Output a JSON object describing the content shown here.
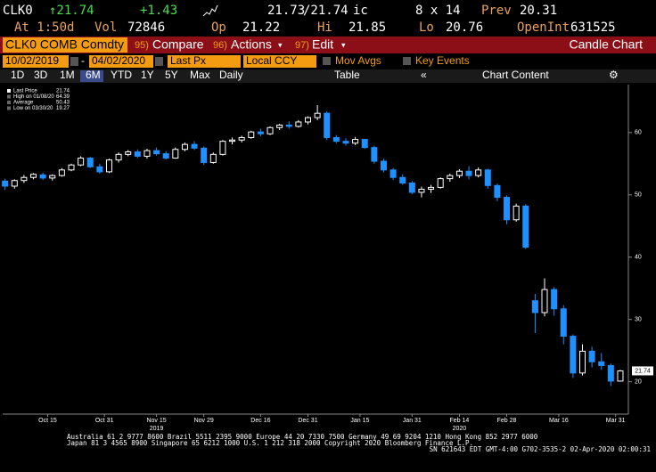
{
  "header": {
    "ticker": "CLK0",
    "last": "↑21.74",
    "change": "+1.43",
    "bid": "21.73",
    "ask": "/21.74",
    "bid_ask_code": "ic",
    "size": "8 x 14",
    "prev_label": "Prev",
    "prev": "20.31",
    "time": "At 1:50d",
    "vol_label": "Vol",
    "vol": "72846",
    "open_label": "Op",
    "open": "21.22",
    "high_label": "Hi",
    "high": "21.85",
    "low_label": "Lo",
    "low": "20.76",
    "oi_label": "OpenInt",
    "oi": "631525"
  },
  "toolbar": {
    "security": "CLK0 COMB Comdty",
    "compare_num": "95)",
    "compare": "Compare",
    "actions_num": "96)",
    "actions": "Actions",
    "edit_num": "97)",
    "edit": "Edit",
    "view": "Candle Chart"
  },
  "settings": {
    "start": "10/02/2019",
    "end": "04/02/2020",
    "field": "Last Px",
    "currency": "Local CCY",
    "mov_avgs": "Mov Avgs",
    "key_events": "Key Events"
  },
  "periods": [
    "1D",
    "3D",
    "1M",
    "6M",
    "YTD",
    "1Y",
    "5Y",
    "Max"
  ],
  "frequency": "Daily",
  "table": "Table",
  "chart_content": "Chart Content",
  "chart": {
    "type": "candlestick",
    "up_color": "#ffffff",
    "down_color": "#1e90ff",
    "legend": [
      {
        "label": "Last Price",
        "value": 21.74
      },
      {
        "label": "High on 01/08/20",
        "value": 64.39
      },
      {
        "label": "Average",
        "value": 50.43
      },
      {
        "label": "Low on 03/30/20",
        "value": 19.27
      }
    ],
    "ylim": [
      14.8,
      67.7
    ],
    "yticks": [
      20,
      30,
      40,
      50,
      60
    ],
    "xlim": [
      -0.5,
      131.7
    ],
    "xticks": [
      {
        "value": 9,
        "label": "Oct 15"
      },
      {
        "value": 21,
        "label": "Oct 31"
      },
      {
        "value": 32,
        "label": "Nov 15"
      },
      {
        "value": 42,
        "label": "Nov 29"
      },
      {
        "value": 54,
        "label": "Dec 16"
      },
      {
        "value": 64,
        "label": "Dec 31"
      },
      {
        "value": 75,
        "label": "Jan 15"
      },
      {
        "value": 86,
        "label": "Jan 31"
      },
      {
        "value": 96,
        "label": "Feb 14"
      },
      {
        "value": 106,
        "label": "Feb 28"
      },
      {
        "value": 117,
        "label": "Mar 16"
      },
      {
        "value": 129,
        "label": "Mar 31"
      }
    ],
    "years": [
      {
        "value": 32,
        "label": "2019"
      },
      {
        "value": 96,
        "label": "2020"
      }
    ],
    "candles": [
      {
        "x": 0,
        "o": 52.2,
        "h": 52.6,
        "l": 50.8,
        "c": 51.4
      },
      {
        "x": 2,
        "o": 51.4,
        "h": 52.5,
        "l": 51,
        "c": 52.3
      },
      {
        "x": 4,
        "o": 52.3,
        "h": 53.2,
        "l": 51.9,
        "c": 52.8
      },
      {
        "x": 6,
        "o": 52.8,
        "h": 53.5,
        "l": 52.5,
        "c": 53.3
      },
      {
        "x": 8,
        "o": 53.2,
        "h": 53.6,
        "l": 52.4,
        "c": 52.7
      },
      {
        "x": 10,
        "o": 52.7,
        "h": 53.3,
        "l": 52.3,
        "c": 53.1
      },
      {
        "x": 12,
        "o": 53.1,
        "h": 54.3,
        "l": 52.9,
        "c": 54
      },
      {
        "x": 14,
        "o": 54,
        "h": 55,
        "l": 53.8,
        "c": 54.8
      },
      {
        "x": 16,
        "o": 54.8,
        "h": 56.2,
        "l": 54.6,
        "c": 55.9
      },
      {
        "x": 18,
        "o": 55.9,
        "h": 56.1,
        "l": 54.3,
        "c": 54.5
      },
      {
        "x": 20,
        "o": 54.5,
        "h": 55,
        "l": 53.4,
        "c": 53.7
      },
      {
        "x": 22,
        "o": 53.7,
        "h": 55.8,
        "l": 53.5,
        "c": 55.6
      },
      {
        "x": 24,
        "o": 55.6,
        "h": 56.8,
        "l": 55.2,
        "c": 56.5
      },
      {
        "x": 26,
        "o": 56.5,
        "h": 57.2,
        "l": 56.2,
        "c": 56.9
      },
      {
        "x": 28,
        "o": 56.9,
        "h": 57.3,
        "l": 55.9,
        "c": 56.2
      },
      {
        "x": 30,
        "o": 56.2,
        "h": 57.4,
        "l": 55.8,
        "c": 57.1
      },
      {
        "x": 32,
        "o": 57.1,
        "h": 57.6,
        "l": 56.3,
        "c": 56.6
      },
      {
        "x": 34,
        "o": 56.6,
        "h": 57,
        "l": 55.7,
        "c": 55.9
      },
      {
        "x": 36,
        "o": 55.9,
        "h": 57.6,
        "l": 55.8,
        "c": 57.3
      },
      {
        "x": 38,
        "o": 57.3,
        "h": 58.4,
        "l": 57,
        "c": 58.1
      },
      {
        "x": 40,
        "o": 58.1,
        "h": 58.6,
        "l": 57.2,
        "c": 57.5
      },
      {
        "x": 42,
        "o": 57.5,
        "h": 57.8,
        "l": 54.8,
        "c": 55.2
      },
      {
        "x": 44,
        "o": 55.2,
        "h": 56.8,
        "l": 55,
        "c": 56.5
      },
      {
        "x": 46,
        "o": 56.5,
        "h": 58.8,
        "l": 56.3,
        "c": 58.6
      },
      {
        "x": 48,
        "o": 58.6,
        "h": 59.2,
        "l": 58.1,
        "c": 58.8
      },
      {
        "x": 50,
        "o": 58.8,
        "h": 59.5,
        "l": 58.4,
        "c": 59.2
      },
      {
        "x": 52,
        "o": 59.2,
        "h": 60.3,
        "l": 59,
        "c": 60.1
      },
      {
        "x": 54,
        "o": 60.1,
        "h": 60.6,
        "l": 59.4,
        "c": 59.8
      },
      {
        "x": 56,
        "o": 59.8,
        "h": 61,
        "l": 59.6,
        "c": 60.8
      },
      {
        "x": 58,
        "o": 60.8,
        "h": 61.4,
        "l": 60.4,
        "c": 61.2
      },
      {
        "x": 60,
        "o": 61.2,
        "h": 61.8,
        "l": 60.6,
        "c": 61
      },
      {
        "x": 62,
        "o": 61,
        "h": 62,
        "l": 60.8,
        "c": 61.7
      },
      {
        "x": 64,
        "o": 61.7,
        "h": 62.6,
        "l": 61.3,
        "c": 62.4
      },
      {
        "x": 66,
        "o": 62.4,
        "h": 64.4,
        "l": 62,
        "c": 63.1
      },
      {
        "x": 68,
        "o": 63.1,
        "h": 63.4,
        "l": 58.8,
        "c": 59.2
      },
      {
        "x": 70,
        "o": 59.2,
        "h": 59.6,
        "l": 58.3,
        "c": 58.6
      },
      {
        "x": 72,
        "o": 58.6,
        "h": 59.1,
        "l": 57.9,
        "c": 58.3
      },
      {
        "x": 74,
        "o": 58.3,
        "h": 59.3,
        "l": 58,
        "c": 58.9
      },
      {
        "x": 76,
        "o": 58.9,
        "h": 59,
        "l": 57.4,
        "c": 57.6
      },
      {
        "x": 78,
        "o": 57.6,
        "h": 57.9,
        "l": 55,
        "c": 55.4
      },
      {
        "x": 80,
        "o": 55.4,
        "h": 55.8,
        "l": 53.6,
        "c": 54
      },
      {
        "x": 82,
        "o": 54,
        "h": 54.3,
        "l": 52.4,
        "c": 52.8
      },
      {
        "x": 84,
        "o": 52.8,
        "h": 53.3,
        "l": 51.6,
        "c": 51.9
      },
      {
        "x": 86,
        "o": 51.9,
        "h": 52.2,
        "l": 50.1,
        "c": 50.4
      },
      {
        "x": 88,
        "o": 50.4,
        "h": 51.3,
        "l": 49.6,
        "c": 50.9
      },
      {
        "x": 90,
        "o": 50.9,
        "h": 51.6,
        "l": 50.3,
        "c": 51.2
      },
      {
        "x": 92,
        "o": 51.2,
        "h": 52.8,
        "l": 51,
        "c": 52.6
      },
      {
        "x": 94,
        "o": 52.6,
        "h": 53.4,
        "l": 52.1,
        "c": 53.1
      },
      {
        "x": 96,
        "o": 53.1,
        "h": 54.1,
        "l": 52.7,
        "c": 53.8
      },
      {
        "x": 98,
        "o": 53.8,
        "h": 54.6,
        "l": 52.5,
        "c": 53.1
      },
      {
        "x": 100,
        "o": 53.1,
        "h": 54.4,
        "l": 52.8,
        "c": 54
      },
      {
        "x": 102,
        "o": 54,
        "h": 54.2,
        "l": 51,
        "c": 51.5
      },
      {
        "x": 104,
        "o": 51.5,
        "h": 51.8,
        "l": 49,
        "c": 49.6
      },
      {
        "x": 106,
        "o": 49.6,
        "h": 49.9,
        "l": 45.3,
        "c": 46
      },
      {
        "x": 108,
        "o": 46,
        "h": 48.6,
        "l": 45.7,
        "c": 48.2
      },
      {
        "x": 110,
        "o": 48.2,
        "h": 48.5,
        "l": 41.3,
        "c": 41.6
      },
      {
        "x": 112,
        "o": 33,
        "h": 34.1,
        "l": 27.8,
        "c": 31.1
      },
      {
        "x": 114,
        "o": 31.1,
        "h": 36.6,
        "l": 30.5,
        "c": 34.8
      },
      {
        "x": 116,
        "o": 34.8,
        "h": 35.2,
        "l": 30.6,
        "c": 31.7
      },
      {
        "x": 118,
        "o": 31.7,
        "h": 32.3,
        "l": 26,
        "c": 27.3
      },
      {
        "x": 120,
        "o": 27.3,
        "h": 27.6,
        "l": 20.6,
        "c": 21.4
      },
      {
        "x": 122,
        "o": 21.4,
        "h": 26,
        "l": 21,
        "c": 24.9
      },
      {
        "x": 124,
        "o": 24.9,
        "h": 25.6,
        "l": 22.3,
        "c": 23.2
      },
      {
        "x": 126,
        "o": 23.2,
        "h": 24.6,
        "l": 21.9,
        "c": 22.6
      },
      {
        "x": 128,
        "o": 22.6,
        "h": 22.9,
        "l": 19.3,
        "c": 20.1
      },
      {
        "x": 130,
        "o": 20.1,
        "h": 21.9,
        "l": 20,
        "c": 21.74
      }
    ]
  },
  "footer": [
    "Australia 61 2 9777 8600 Brazil 5511 2395 9000 Europe 44 20 7330 7500 Germany 49 69 9204 1210 Hong Kong 852 2977 6000",
    "Japan 81 3 4565 8900   Singapore 65 6212 1000   U.S. 1 212 318 2000   Copyright 2020 Bloomberg Finance L.P.",
    "SN 621643 EDT  GMT-4:00 G702-3535-2 02-Apr-2020 02:00:31"
  ]
}
